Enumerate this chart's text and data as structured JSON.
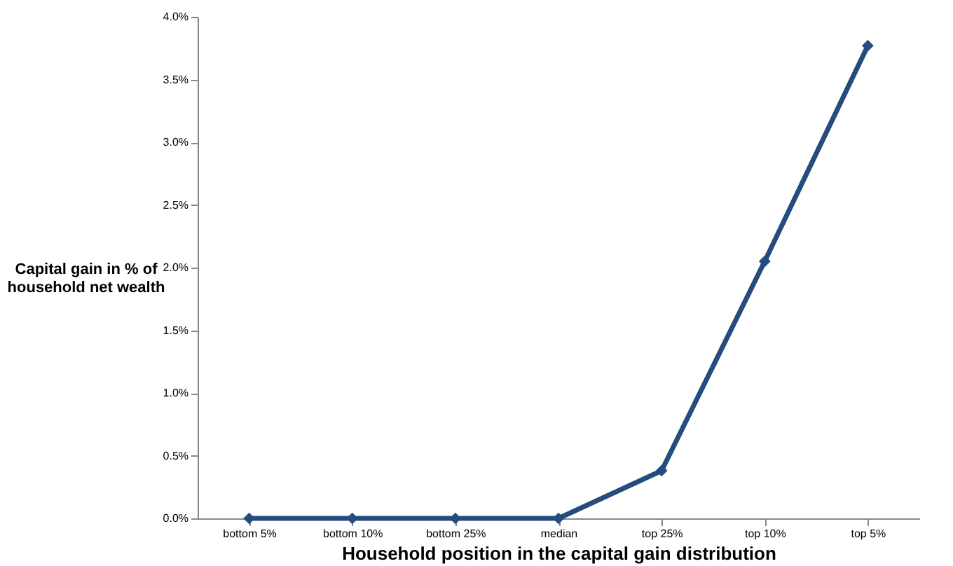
{
  "chart_data": {
    "type": "line",
    "xlabel": "Household position in the capital gain distribution",
    "ylabel": "Capital gain in % of household net wealth",
    "categories": [
      "bottom 5%",
      "bottom 10%",
      "bottom 25%",
      "median",
      "top 25%",
      "top 10%",
      "top 5%"
    ],
    "series": [
      {
        "color": "#244c7e",
        "values": [
          0,
          0,
          0,
          0,
          0.38,
          2.05,
          3.77
        ]
      }
    ],
    "ylim": [
      0,
      4
    ],
    "yticks": [
      {
        "value": 0,
        "label": "0.0%"
      },
      {
        "value": 0.5,
        "label": "0.5%"
      },
      {
        "value": 1,
        "label": "1.0%"
      },
      {
        "value": 1.5,
        "label": "1.5%"
      },
      {
        "value": 2,
        "label": "2.0%"
      },
      {
        "value": 2.5,
        "label": "2.5%"
      },
      {
        "value": 3,
        "label": "3.0%"
      },
      {
        "value": 3.5,
        "label": "3.5%"
      },
      {
        "value": 4,
        "label": "4.0%"
      }
    ],
    "grid": false,
    "marker": "diamond",
    "line_style": "solid"
  }
}
